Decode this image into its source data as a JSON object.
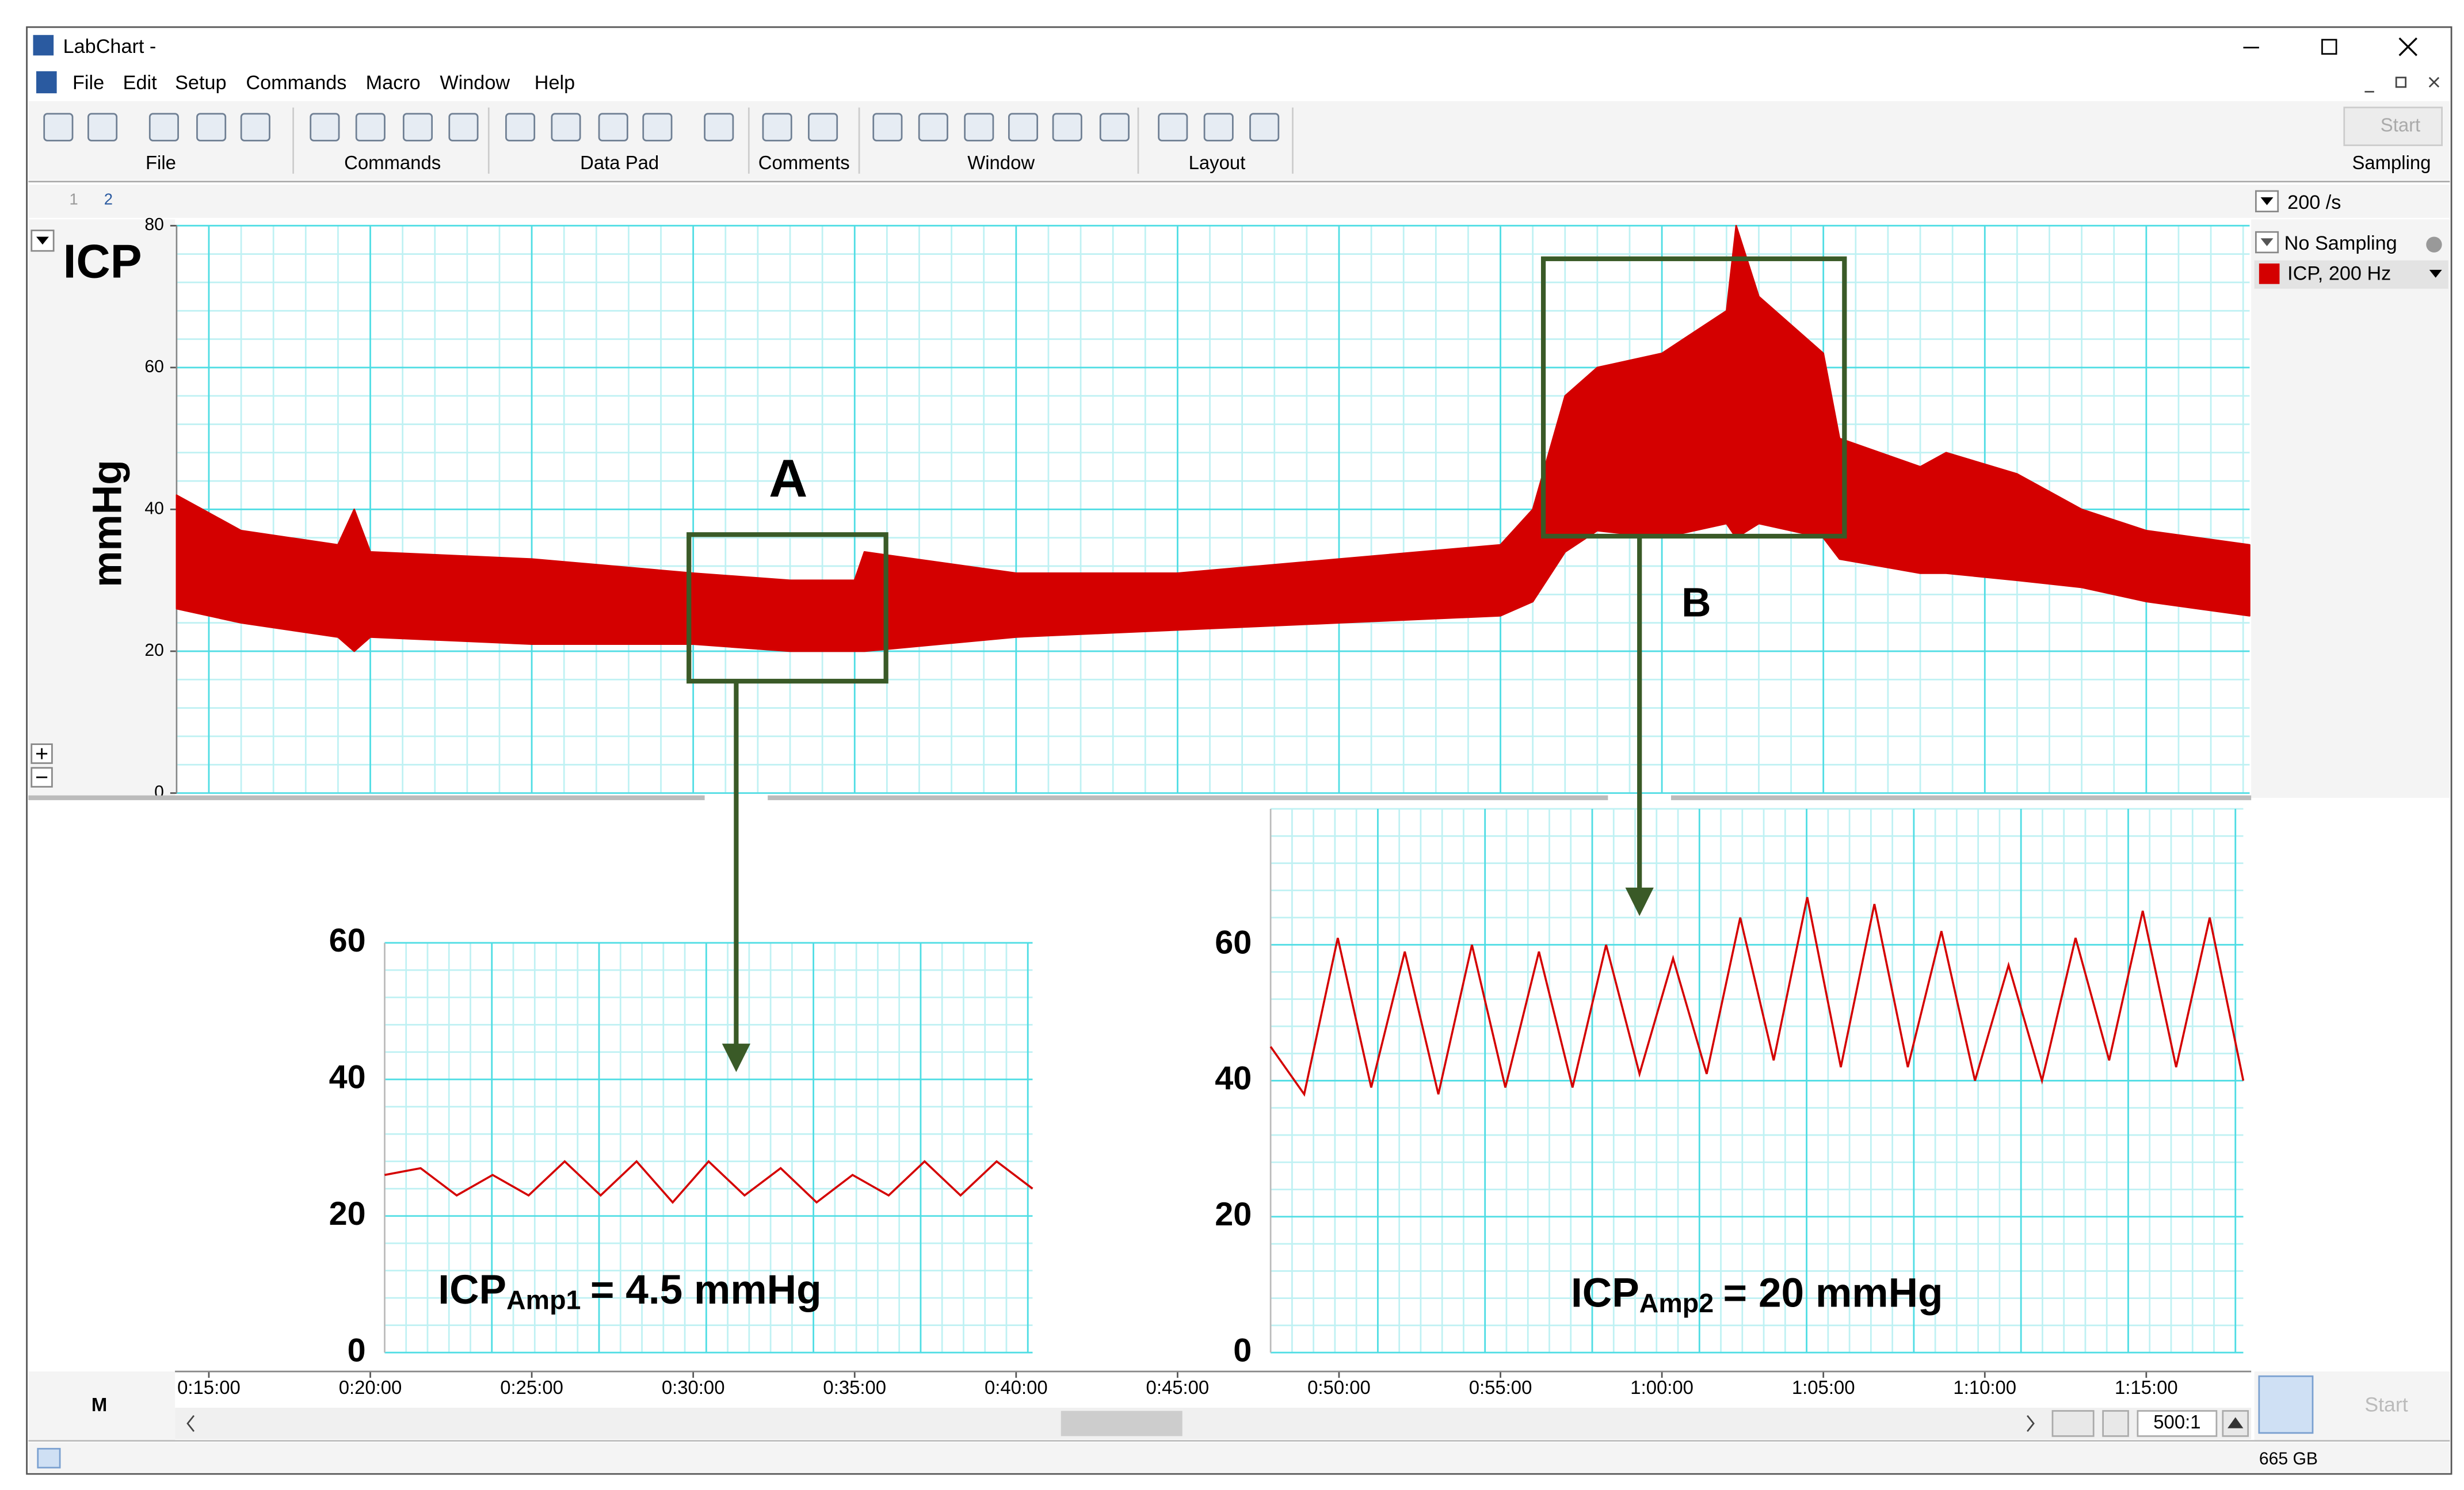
{
  "window": {
    "title": "LabChart -"
  },
  "menu": [
    "File",
    "Edit",
    "Setup",
    "Commands",
    "Macro",
    "Window",
    "Help"
  ],
  "toolbar_groups": [
    "File",
    "Commands",
    "Data Pad",
    "Comments",
    "Window",
    "Layout",
    "Sampling"
  ],
  "start_button": "Start",
  "page_tabs": [
    "1",
    "2"
  ],
  "rate": "200 /s",
  "channel_list": [
    "No Sampling",
    "ICP, 200 Hz"
  ],
  "channel": {
    "name": "ICP",
    "unit": "mmHg"
  },
  "chart_data": [
    {
      "type": "band",
      "color": "#d40000",
      "x": [
        14,
        16,
        19,
        19.5,
        20,
        25,
        30,
        33,
        35,
        35.3,
        40,
        45,
        50,
        55,
        56,
        57,
        58,
        60,
        62,
        62.3,
        63,
        65,
        65.5,
        68,
        68.8,
        71,
        73,
        75,
        78.2
      ],
      "lower": [
        26,
        24,
        22,
        20,
        22,
        21,
        21,
        20,
        20,
        20,
        22,
        23,
        24,
        25,
        27,
        34,
        37,
        36,
        38,
        36,
        38,
        36,
        33,
        31,
        31,
        30,
        29,
        27,
        25
      ],
      "upper": [
        42,
        37,
        35,
        40,
        34,
        33,
        31,
        30,
        30,
        34,
        31,
        31,
        33,
        35,
        40,
        56,
        60,
        62,
        68,
        80,
        70,
        62,
        50,
        46,
        48,
        45,
        40,
        37,
        35
      ],
      "xlim": [
        14,
        78.2
      ],
      "ylim": [
        0,
        80
      ],
      "yticks": [
        0,
        20,
        40,
        60,
        80
      ],
      "xticks": [
        {
          "value": 15,
          "label": "0:15:00"
        },
        {
          "value": 20,
          "label": "0:20:00"
        },
        {
          "value": 25,
          "label": "0:25:00"
        },
        {
          "value": 30,
          "label": "0:30:00"
        },
        {
          "value": 35,
          "label": "0:35:00"
        },
        {
          "value": 40,
          "label": "0:40:00"
        },
        {
          "value": 45,
          "label": "0:45:00"
        },
        {
          "value": 50,
          "label": "0:50:00"
        },
        {
          "value": 55,
          "label": "0:55:00"
        },
        {
          "value": 60,
          "label": "1:00:00"
        },
        {
          "value": 65,
          "label": "1:05:00"
        },
        {
          "value": 70,
          "label": "1:10:00"
        },
        {
          "value": 75,
          "label": "1:15:00"
        }
      ],
      "annotations": [
        "A",
        "B"
      ],
      "grid": true
    },
    {
      "type": "line",
      "color": "#d40000",
      "values": [
        26,
        27,
        23,
        26,
        23,
        28,
        23,
        28,
        22,
        28,
        23,
        27,
        22,
        26,
        23,
        28,
        23,
        28,
        24
      ],
      "ylim": [
        0,
        60
      ],
      "yticks": [
        0,
        20,
        40,
        60
      ],
      "label": {
        "main": "ICP",
        "sub": "Amp1",
        "rest": "= 4.5 mmHg"
      },
      "grid": true
    },
    {
      "type": "line",
      "color": "#d40000",
      "values": [
        45,
        38,
        61,
        39,
        59,
        38,
        60,
        39,
        59,
        39,
        60,
        41,
        58,
        41,
        64,
        43,
        67,
        42,
        66,
        42,
        62,
        40,
        57,
        40,
        61,
        43,
        65,
        42,
        64,
        40
      ],
      "ylim": [
        0,
        80
      ],
      "yticks": [
        0,
        20,
        40,
        60
      ],
      "label": {
        "main": "ICP",
        "sub": "Amp2",
        "rest": "= 20 mmHg"
      },
      "grid": true
    }
  ],
  "status": {
    "marker": "M",
    "zoom": "500:1",
    "disk": "665 GB",
    "start": "Start"
  }
}
